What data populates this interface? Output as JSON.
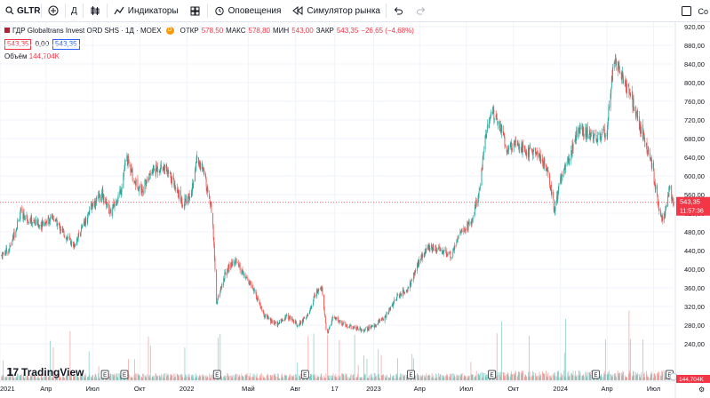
{
  "toolbar": {
    "symbol": "GLTR",
    "interval": "Д",
    "indicators_label": "Индикаторы",
    "alerts_label": "Оповещения",
    "replay_label": "Симулятор рынка",
    "right_label": "Со"
  },
  "legend": {
    "title": "ГДР Globaltrans Invest ORD SHS · 1Д · MOEX",
    "source_badge": "D",
    "open_label": "ОТКР",
    "open_value": "578,50",
    "high_label": "МАКС",
    "high_value": "578,80",
    "low_label": "МИН",
    "low_value": "543,00",
    "close_label": "ЗАКР",
    "close_value": "543,35",
    "change": "−26,65 (−4,68%)",
    "sell_price": "543,35",
    "spread": "0,00",
    "buy_price": "543,35",
    "volume_label": "Объём",
    "volume_value": "144,704K"
  },
  "price_axis": {
    "labels": [
      "920,00",
      "880,00",
      "840,00",
      "800,00",
      "760,00",
      "720,00",
      "680,00",
      "640,00",
      "600,00",
      "560,00",
      "520,00",
      "480,00",
      "440,00",
      "400,00",
      "360,00",
      "320,00",
      "280,00",
      "240,00"
    ],
    "last_price_label": "543,35",
    "countdown_label": "11:57:36",
    "volume_tag": "144,704K"
  },
  "time_axis": {
    "labels": [
      "2021",
      "Апр",
      "Июл",
      "Окт",
      "2022",
      "Май",
      "Авг",
      "17",
      "2023",
      "Апр",
      "Июл",
      "Окт",
      "2024",
      "Апр",
      "Июл"
    ]
  },
  "logo_text": "TradingView",
  "colors": {
    "up": "#26a69a",
    "down": "#ef5350",
    "last_price": "#f23645",
    "grid": "#f0f3fa",
    "axis_text": "#131722"
  },
  "chart_data": {
    "type": "candlestick",
    "title": "ГДР Globaltrans Invest ORD SHS · 1Д · MOEX",
    "x_range": [
      "2021-01-01",
      "2024-08-09"
    ],
    "ylim": [
      220,
      930
    ],
    "y_ticks": [
      240,
      280,
      320,
      360,
      400,
      440,
      480,
      520,
      560,
      600,
      640,
      680,
      720,
      760,
      800,
      840,
      880,
      920
    ],
    "close_anchors": [
      [
        "2021-01-04",
        430
      ],
      [
        "2021-01-20",
        445
      ],
      [
        "2021-02-10",
        520
      ],
      [
        "2021-03-01",
        505
      ],
      [
        "2021-03-20",
        495
      ],
      [
        "2021-04-15",
        510
      ],
      [
        "2021-05-10",
        470
      ],
      [
        "2021-05-25",
        450
      ],
      [
        "2021-06-15",
        500
      ],
      [
        "2021-07-01",
        540
      ],
      [
        "2021-07-20",
        560
      ],
      [
        "2021-08-05",
        520
      ],
      [
        "2021-08-25",
        570
      ],
      [
        "2021-09-05",
        640
      ],
      [
        "2021-09-20",
        590
      ],
      [
        "2021-10-05",
        570
      ],
      [
        "2021-10-25",
        610
      ],
      [
        "2021-11-15",
        620
      ],
      [
        "2021-12-05",
        590
      ],
      [
        "2021-12-25",
        540
      ],
      [
        "2022-01-10",
        560
      ],
      [
        "2022-01-20",
        640
      ],
      [
        "2022-02-05",
        600
      ],
      [
        "2022-02-20",
        520
      ],
      [
        "2022-02-28",
        330
      ],
      [
        "2022-03-20",
        400
      ],
      [
        "2022-04-05",
        420
      ],
      [
        "2022-04-20",
        390
      ],
      [
        "2022-05-10",
        360
      ],
      [
        "2022-06-01",
        300
      ],
      [
        "2022-06-25",
        280
      ],
      [
        "2022-07-15",
        300
      ],
      [
        "2022-08-05",
        280
      ],
      [
        "2022-08-25",
        300
      ],
      [
        "2022-09-10",
        350
      ],
      [
        "2022-09-22",
        360
      ],
      [
        "2022-10-01",
        260
      ],
      [
        "2022-10-15",
        300
      ],
      [
        "2022-11-05",
        280
      ],
      [
        "2022-11-25",
        275
      ],
      [
        "2022-12-15",
        270
      ],
      [
        "2023-01-05",
        280
      ],
      [
        "2023-01-25",
        300
      ],
      [
        "2023-02-15",
        340
      ],
      [
        "2023-03-10",
        360
      ],
      [
        "2023-04-01",
        420
      ],
      [
        "2023-04-20",
        450
      ],
      [
        "2023-05-10",
        440
      ],
      [
        "2023-06-01",
        430
      ],
      [
        "2023-06-20",
        480
      ],
      [
        "2023-07-10",
        500
      ],
      [
        "2023-07-25",
        560
      ],
      [
        "2023-08-10",
        700
      ],
      [
        "2023-08-20",
        740
      ],
      [
        "2023-09-05",
        710
      ],
      [
        "2023-09-20",
        650
      ],
      [
        "2023-10-05",
        680
      ],
      [
        "2023-10-25",
        650
      ],
      [
        "2023-11-15",
        650
      ],
      [
        "2023-12-05",
        620
      ],
      [
        "2023-12-20",
        530
      ],
      [
        "2024-01-05",
        610
      ],
      [
        "2024-01-20",
        640
      ],
      [
        "2024-02-05",
        700
      ],
      [
        "2024-02-25",
        690
      ],
      [
        "2024-03-15",
        680
      ],
      [
        "2024-04-01",
        700
      ],
      [
        "2024-04-12",
        830
      ],
      [
        "2024-04-20",
        845
      ],
      [
        "2024-05-05",
        800
      ],
      [
        "2024-05-20",
        760
      ],
      [
        "2024-06-05",
        700
      ],
      [
        "2024-06-25",
        640
      ],
      [
        "2024-07-10",
        540
      ],
      [
        "2024-07-20",
        500
      ],
      [
        "2024-08-01",
        575
      ],
      [
        "2024-08-09",
        543.35
      ]
    ],
    "last_close": 543.35,
    "volume_last": "144,704K"
  }
}
